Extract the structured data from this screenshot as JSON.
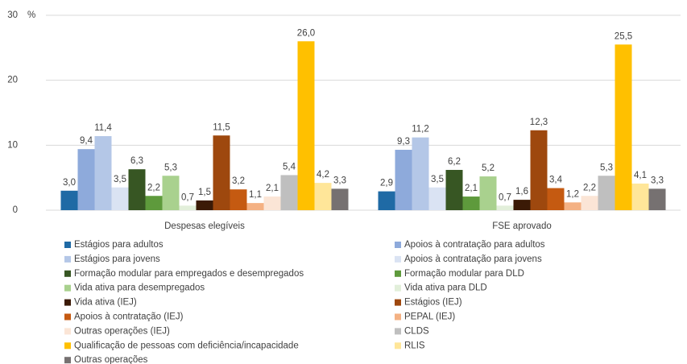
{
  "chart_data": {
    "type": "bar",
    "unit_label": "%",
    "categories": [
      "Despesas elegíveis",
      "FSE aprovado"
    ],
    "ylim": [
      0,
      30
    ],
    "yticks": [
      0,
      10,
      20,
      30
    ],
    "grid": true,
    "series": [
      {
        "name": "Estágios para adultos",
        "color": "#1f6aa5",
        "values": [
          3.0,
          2.9
        ],
        "value_labels": [
          "3,0",
          "2,9"
        ]
      },
      {
        "name": "Apoios à contratação para adultos",
        "color": "#8eaadb",
        "values": [
          9.4,
          9.3
        ],
        "value_labels": [
          "9,4",
          "9,3"
        ]
      },
      {
        "name": "Estágios para jovens",
        "color": "#b4c7e7",
        "values": [
          11.4,
          11.2
        ],
        "value_labels": [
          "11,4",
          "11,2"
        ]
      },
      {
        "name": "Apoios à contratação para jovens",
        "color": "#dae3f3",
        "values": [
          3.5,
          3.5
        ],
        "value_labels": [
          "3,5",
          "3,5"
        ]
      },
      {
        "name": "Formação modular para empregados e desempregados",
        "color": "#375623",
        "values": [
          6.3,
          6.2
        ],
        "value_labels": [
          "6,3",
          "6,2"
        ]
      },
      {
        "name": "Formação modular para DLD",
        "color": "#5e9a3c",
        "values": [
          2.2,
          2.1
        ],
        "value_labels": [
          "2,2",
          "2,1"
        ]
      },
      {
        "name": "Vida ativa para desempregados",
        "color": "#a9d18e",
        "values": [
          5.3,
          5.2
        ],
        "value_labels": [
          "5,3",
          "5,2"
        ]
      },
      {
        "name": "Vida ativa para DLD",
        "color": "#e2efda",
        "values": [
          0.7,
          0.7
        ],
        "value_labels": [
          "0,7",
          "0,7"
        ]
      },
      {
        "name": "Vida ativa (IEJ)",
        "color": "#3b1a06",
        "values": [
          1.5,
          1.6
        ],
        "value_labels": [
          "1,5",
          "1,6"
        ]
      },
      {
        "name": "Estágios (IEJ)",
        "color": "#9e480e",
        "values": [
          11.5,
          12.3
        ],
        "value_labels": [
          "11,5",
          "12,3"
        ]
      },
      {
        "name": "Apoios à contratação (IEJ)",
        "color": "#c55a11",
        "values": [
          3.2,
          3.4
        ],
        "value_labels": [
          "3,2",
          "3,4"
        ]
      },
      {
        "name": "PEPAL (IEJ)",
        "color": "#f4b183",
        "values": [
          1.1,
          1.2
        ],
        "value_labels": [
          "1,1",
          "1,2"
        ]
      },
      {
        "name": "Outras operações (IEJ)",
        "color": "#fbe5d6",
        "values": [
          2.1,
          2.2
        ],
        "value_labels": [
          "2,1",
          "2,2"
        ]
      },
      {
        "name": "CLDS",
        "color": "#bfbfbf",
        "values": [
          5.4,
          5.3
        ],
        "value_labels": [
          "5,4",
          "5,3"
        ]
      },
      {
        "name": "Qualificação de pessoas com deficiência/incapacidade",
        "color": "#ffc000",
        "values": [
          26.0,
          25.5
        ],
        "value_labels": [
          "26,0",
          "25,5"
        ]
      },
      {
        "name": "RLIS",
        "color": "#ffe699",
        "values": [
          4.2,
          4.1
        ],
        "value_labels": [
          "4,2",
          "4,1"
        ]
      },
      {
        "name": "Outras operações",
        "color": "#767171",
        "values": [
          3.3,
          3.3
        ],
        "value_labels": [
          "3,3",
          "3,3"
        ]
      }
    ]
  }
}
